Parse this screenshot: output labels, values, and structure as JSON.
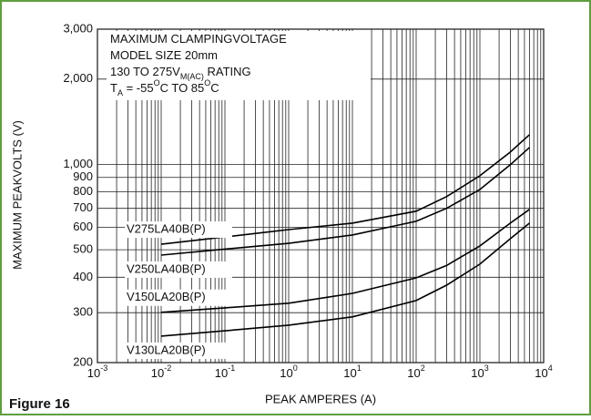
{
  "chart_data": {
    "type": "line",
    "figure_label": "Figure 16",
    "xlabel": "PEAK AMPERES (A)",
    "ylabel": "MAXIMUM PEAKVOLTS (V)",
    "log_x": true,
    "log_y": true,
    "grid": true,
    "color": "#000000",
    "xlim": [
      0.001,
      10000
    ],
    "ylim": [
      200,
      3000
    ],
    "xticks": [
      {
        "value": 0.001,
        "label": "10",
        "exponent": "-3"
      },
      {
        "value": 0.01,
        "label": "10",
        "exponent": "-2"
      },
      {
        "value": 0.1,
        "label": "10",
        "exponent": "-1"
      },
      {
        "value": 1,
        "label": "10",
        "exponent": "0"
      },
      {
        "value": 10,
        "label": "10",
        "exponent": "1"
      },
      {
        "value": 100,
        "label": "10",
        "exponent": "2"
      },
      {
        "value": 1000,
        "label": "10",
        "exponent": "3"
      },
      {
        "value": 10000,
        "label": "10",
        "exponent": "4"
      }
    ],
    "yticks": [
      200,
      300,
      400,
      500,
      600,
      700,
      800,
      900,
      {
        "value": 1000,
        "label": "1,000"
      },
      {
        "value": 2000,
        "label": "2,000"
      },
      {
        "value": 3000,
        "label": "3,000"
      }
    ],
    "annotations": [
      {
        "segments": [
          {
            "text": "MAXIMUM CLAMPINGVOLTAGE"
          }
        ]
      },
      {
        "segments": [
          {
            "text": "MODEL SIZE 20mm"
          }
        ]
      },
      {
        "segments": [
          {
            "text": "130 TO 275V"
          },
          {
            "text": "M(AC)",
            "shift": "sub"
          },
          {
            "text": " RATING"
          }
        ]
      },
      {
        "segments": [
          {
            "text": "T"
          },
          {
            "text": "A",
            "shift": "sub"
          },
          {
            "text": " = -55"
          },
          {
            "text": "O",
            "shift": "sup"
          },
          {
            "text": "C TO 85"
          },
          {
            "text": "O",
            "shift": "sup"
          },
          {
            "text": "C"
          }
        ]
      }
    ],
    "x": [
      0.01,
      0.1,
      1,
      10,
      100,
      300,
      1000,
      3000,
      6000
    ],
    "series": [
      {
        "name": "V275LA40B(P)",
        "values": [
          523,
          555,
          589,
          621,
          684,
          770,
          912,
          1106,
          1274
        ]
      },
      {
        "name": "V250LA40B(P)",
        "values": [
          479,
          503,
          527,
          564,
          630,
          700,
          816,
          998,
          1148
        ]
      },
      {
        "name": "V150LA20B(P)",
        "values": [
          301,
          312,
          324,
          351,
          398,
          440,
          516,
          621,
          694
        ]
      },
      {
        "name": "V130LA20B(P)",
        "values": [
          248,
          259,
          271,
          290,
          331,
          375,
          445,
          547,
          621
        ]
      }
    ]
  }
}
